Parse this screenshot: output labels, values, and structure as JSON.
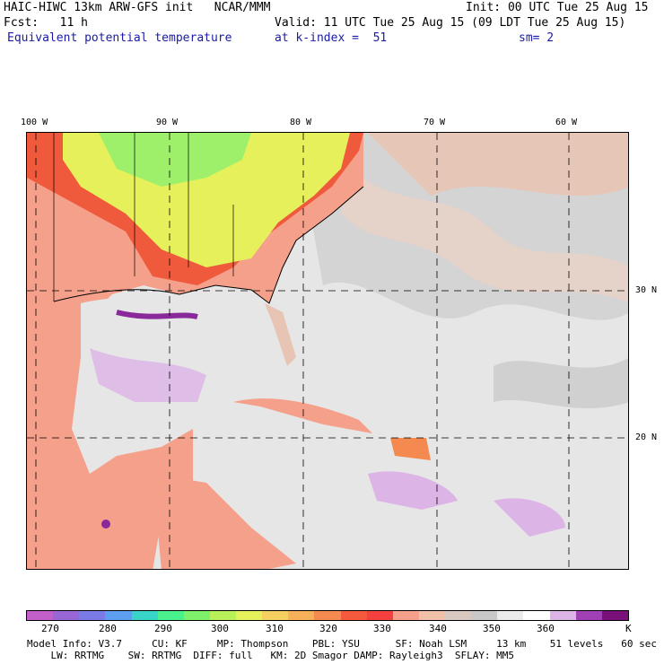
{
  "header": {
    "model_line": "HAIC-HIWC 13km ARW-GFS init   NCAR/MMM",
    "init": "Init: 00 UTC Tue 25 Aug 15",
    "fcst": "Fcst:   11 h",
    "valid": "Valid: 11 UTC Tue 25 Aug 15 (09 LDT Tue 25 Aug 15)",
    "field": "Equivalent potential temperature",
    "level": "at k-index =  51",
    "smooth": "sm= 2"
  },
  "map": {
    "lon_labels": [
      "100 W",
      "90 W",
      "80 W",
      "70 W",
      "60 W"
    ],
    "lat_labels": [
      "30 N",
      "20 N"
    ]
  },
  "legend": {
    "unit": "K",
    "tick_labels": [
      "270",
      "280",
      "290",
      "300",
      "310",
      "320",
      "330",
      "340",
      "350",
      "360"
    ],
    "colors": [
      "#c35fc8",
      "#9966d6",
      "#7b7be8",
      "#5c9ef0",
      "#38d4c8",
      "#4af08c",
      "#7ff06a",
      "#b8f05a",
      "#e6f05a",
      "#f5d060",
      "#f5b05a",
      "#f58a50",
      "#f55a3c",
      "#f54040",
      "#f5a08a",
      "#f0c0a8",
      "#d8c8c0",
      "#c8c8c8",
      "#ebebeb",
      "#ffffff",
      "#dcb4e6",
      "#a040b4",
      "#7a107a"
    ]
  },
  "footer": {
    "line1": "Model Info: V3.7     CU: KF     MP: Thompson    PBL: YSU      SF: Noah LSM     13 km    51 levels   60 sec",
    "line2": "    LW: RRTMG    SW: RRTMG  DIFF: full   KM: 2D Smagor DAMP: Rayleigh3  SFLAY: MM5"
  }
}
